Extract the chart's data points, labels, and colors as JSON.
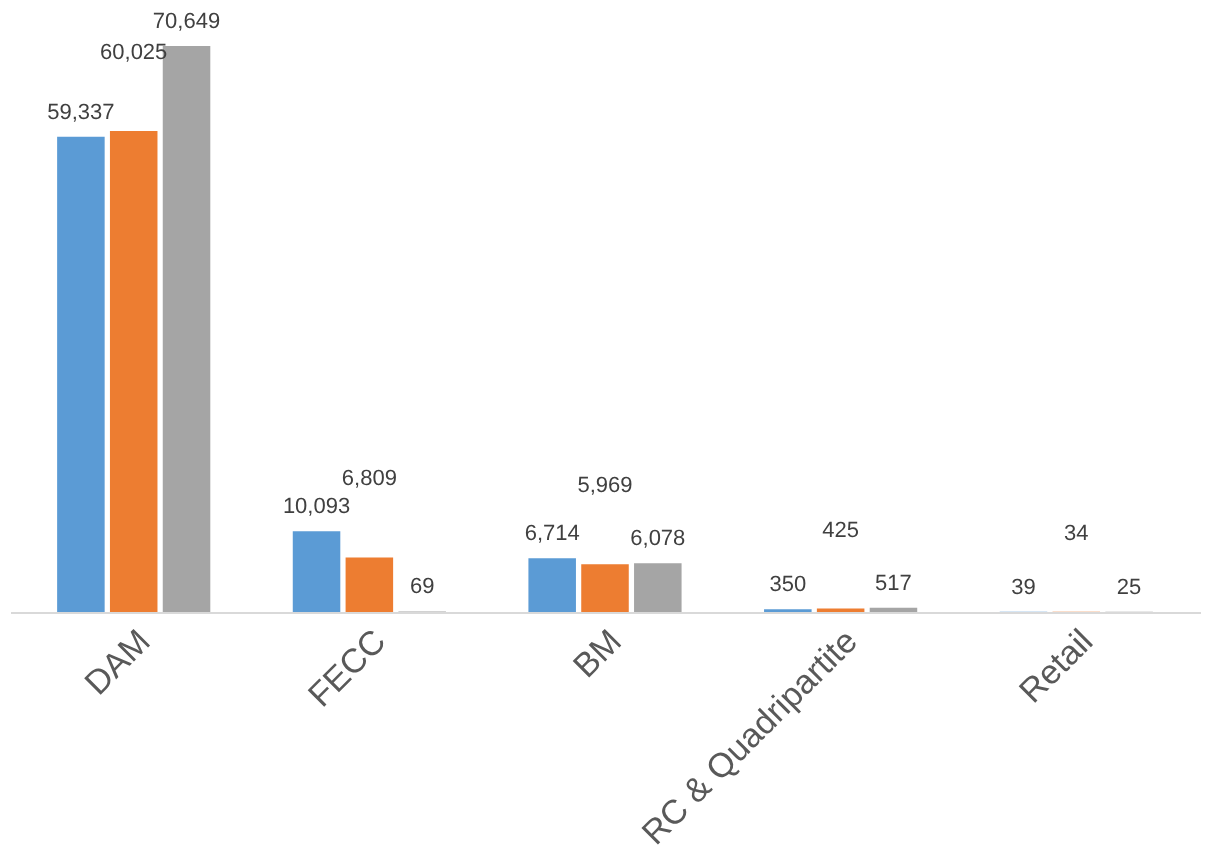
{
  "chart_data": {
    "type": "bar",
    "categories": [
      "DAM",
      "FECC",
      "BM",
      "RC & Quadripartite",
      "Retail"
    ],
    "series": [
      {
        "color": "#5b9bd5",
        "values": [
          59337,
          10093,
          6714,
          350,
          39
        ],
        "value_labels": [
          "59,337",
          "10,093",
          "6,714",
          "350",
          "39"
        ]
      },
      {
        "color": "#ed7d31",
        "values": [
          60025,
          6809,
          5969,
          425,
          34
        ],
        "value_labels": [
          "60,025",
          "6,809",
          "5,969",
          "425",
          "34"
        ]
      },
      {
        "color": "#a5a5a5",
        "values": [
          70649,
          69,
          6078,
          517,
          25
        ],
        "value_labels": [
          "70,649",
          "69",
          "6,078",
          "517",
          "25"
        ]
      }
    ],
    "grid": false,
    "legend": false
  }
}
